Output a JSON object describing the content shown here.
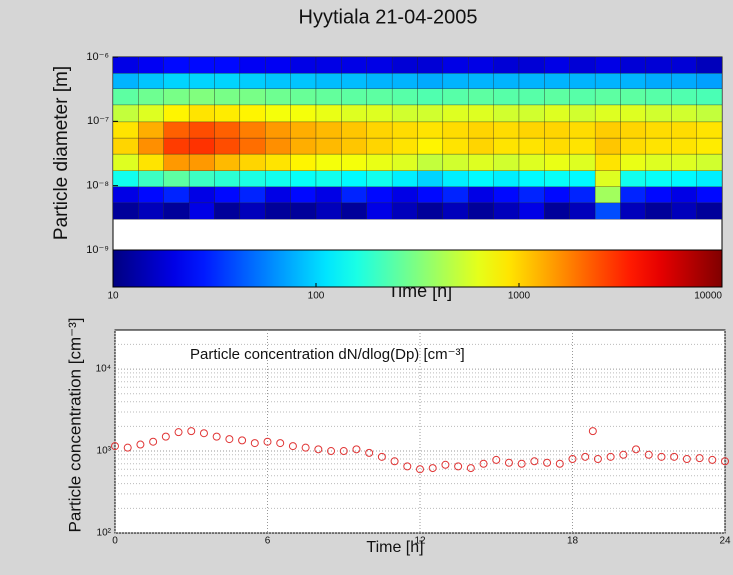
{
  "chart_data": [
    {
      "type": "heatmap",
      "title": "Hyytiala 21-04-2005",
      "ylabel": "Particle diameter [m]",
      "xlabel": "Time [h]",
      "x": [
        0,
        1,
        2,
        3,
        4,
        5,
        6,
        7,
        8,
        9,
        10,
        11,
        12,
        13,
        14,
        15,
        16,
        17,
        18,
        19,
        20,
        21,
        22,
        23,
        24
      ],
      "y": [
        3e-09,
        5.4e-09,
        9.6e-09,
        1.7e-08,
        3.1e-08,
        5.5e-08,
        9.8e-08,
        1.8e-07,
        3.2e-07,
        5.6e-07,
        1e-06
      ],
      "z": [
        [
          12,
          15,
          12,
          20,
          12,
          15,
          12,
          12,
          15,
          12,
          20,
          15,
          12,
          15,
          12,
          15,
          20,
          12,
          15,
          40,
          15,
          12,
          15,
          12
        ],
        [
          20,
          25,
          30,
          20,
          25,
          30,
          20,
          25,
          20,
          30,
          25,
          20,
          25,
          30,
          20,
          25,
          30,
          25,
          30,
          400,
          30,
          25,
          20,
          25
        ],
        [
          150,
          200,
          250,
          200,
          180,
          160,
          150,
          140,
          150,
          130,
          150,
          120,
          100,
          120,
          130,
          120,
          130,
          140,
          130,
          600,
          150,
          140,
          130,
          120
        ],
        [
          600,
          900,
          1500,
          1500,
          1200,
          1000,
          900,
          800,
          700,
          700,
          650,
          600,
          500,
          550,
          600,
          550,
          600,
          650,
          600,
          900,
          650,
          600,
          600,
          550
        ],
        [
          1000,
          1600,
          2800,
          3000,
          2500,
          2000,
          1600,
          1300,
          1200,
          1100,
          1000,
          900,
          800,
          900,
          1000,
          900,
          900,
          950,
          900,
          1100,
          950,
          900,
          900,
          850
        ],
        [
          900,
          1300,
          2200,
          2500,
          2200,
          1800,
          1500,
          1300,
          1200,
          1100,
          1000,
          950,
          900,
          950,
          1000,
          950,
          1000,
          1000,
          950,
          1050,
          1000,
          950,
          950,
          900
        ],
        [
          500,
          600,
          800,
          900,
          850,
          800,
          700,
          700,
          650,
          600,
          600,
          550,
          550,
          600,
          600,
          550,
          550,
          600,
          550,
          600,
          600,
          550,
          550,
          500
        ],
        [
          250,
          280,
          300,
          320,
          300,
          300,
          280,
          270,
          260,
          250,
          250,
          240,
          230,
          240,
          250,
          240,
          240,
          250,
          240,
          250,
          250,
          240,
          230,
          220
        ],
        [
          80,
          90,
          100,
          100,
          100,
          95,
          90,
          90,
          85,
          85,
          80,
          80,
          75,
          80,
          80,
          80,
          80,
          80,
          80,
          80,
          80,
          75,
          75,
          70
        ],
        [
          20,
          22,
          25,
          25,
          25,
          22,
          22,
          20,
          20,
          20,
          20,
          18,
          18,
          20,
          20,
          18,
          18,
          20,
          18,
          20,
          18,
          18,
          18,
          15
        ]
      ],
      "xlim": [
        0,
        24
      ],
      "ylim": [
        1e-09,
        1e-06
      ],
      "log_y": true,
      "yticks": [
        {
          "value": 1e-09,
          "label": "10⁻⁹"
        },
        {
          "value": 1e-08,
          "label": "10⁻⁸"
        },
        {
          "value": 1e-07,
          "label": "10⁻⁷"
        },
        {
          "value": 1e-06,
          "label": "10⁻⁶"
        }
      ],
      "colormap": "jet",
      "clim": [
        10,
        10000
      ],
      "cticks": [
        10,
        100,
        1000,
        10000
      ]
    },
    {
      "type": "scatter",
      "ylabel": "Particle concentration [cm⁻³]",
      "xlabel": "Time [h]",
      "annotation": "Particle concentration dN/dlog(Dp) [cm⁻³]",
      "color": "#e03535",
      "x": [
        0,
        0.5,
        1,
        1.5,
        2,
        2.5,
        3,
        3.5,
        4,
        4.5,
        5,
        5.5,
        6,
        6.5,
        7,
        7.5,
        8,
        8.5,
        9,
        9.5,
        10,
        10.5,
        11,
        11.5,
        12,
        12.5,
        13,
        13.5,
        14,
        14.5,
        15,
        15.5,
        16,
        16.5,
        17,
        17.5,
        18,
        18.5,
        18.8,
        19,
        19.5,
        20,
        20.5,
        21,
        21.5,
        22,
        22.5,
        23,
        23.5,
        24
      ],
      "values": [
        1150,
        1100,
        1200,
        1300,
        1500,
        1700,
        1750,
        1650,
        1500,
        1400,
        1350,
        1250,
        1300,
        1250,
        1150,
        1100,
        1050,
        1000,
        1000,
        1050,
        950,
        850,
        750,
        650,
        600,
        620,
        680,
        650,
        620,
        700,
        780,
        720,
        700,
        750,
        720,
        700,
        800,
        850,
        1750,
        800,
        850,
        900,
        1050,
        900,
        850,
        850,
        800,
        820,
        780,
        750
      ],
      "xlim": [
        0,
        24
      ],
      "ylim": [
        100,
        30000
      ],
      "log_y": true,
      "grid": true,
      "xticks": [
        0,
        6,
        12,
        18,
        24
      ],
      "yticks": [
        {
          "value": 100,
          "label": "10²"
        },
        {
          "value": 1000,
          "label": "10³"
        },
        {
          "value": 10000,
          "label": "10⁴"
        }
      ],
      "minor_yticks": [
        200,
        300,
        400,
        500,
        600,
        700,
        800,
        900,
        2000,
        3000,
        4000,
        5000,
        6000,
        7000,
        8000,
        9000,
        20000
      ]
    }
  ]
}
